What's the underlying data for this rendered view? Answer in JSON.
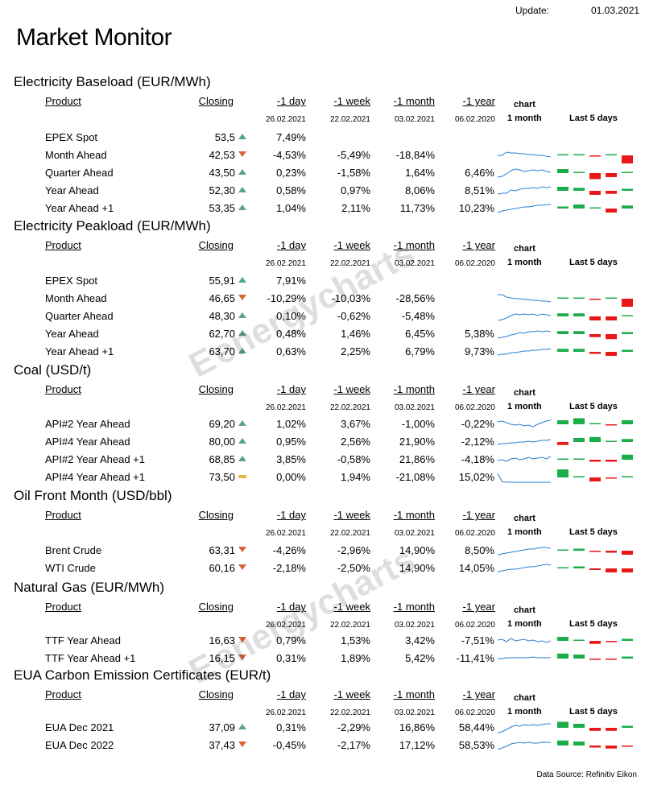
{
  "header": {
    "update_label": "Update:",
    "update_date": "01.03.2021",
    "title": "Market Monitor"
  },
  "columns": {
    "product": "Product",
    "closing": "Closing",
    "d1": "-1 day",
    "w1": "-1 week",
    "m1": "-1 month",
    "y1": "-1 year",
    "chart": "chart",
    "chart_sub": "1 month",
    "last5": "Last 5  days"
  },
  "ref_dates": {
    "d1": "26.02.2021",
    "w1": "22.02.2021",
    "m1": "03.02.2021",
    "y1": "06.02.2020"
  },
  "colors": {
    "up": "#5aa77f",
    "down": "#d8643a",
    "flat": "#e8b64a",
    "bar_green": "#1aad4a",
    "bar_red": "#e81818",
    "spark": "#2a7fd0"
  },
  "sections": [
    {
      "title": "Electricity Baseload (EUR/MWh)",
      "rows": [
        {
          "product": "EPEX Spot",
          "closing": "53,5",
          "dir": "up",
          "d1": "7,49%",
          "w1": "",
          "m1": "",
          "y1": "",
          "spark": [],
          "bars": []
        },
        {
          "product": "Month Ahead",
          "closing": "42,53",
          "dir": "down",
          "d1": "-4,53%",
          "w1": "-5,49%",
          "m1": "-18,84%",
          "y1": "",
          "spark": [
            9,
            9,
            5,
            6,
            6,
            7,
            7,
            8,
            8,
            9,
            9,
            10,
            11
          ],
          "bars": [
            0.5,
            0.5,
            -0.5,
            0,
            -4
          ]
        },
        {
          "product": "Quarter Ahead",
          "closing": "43,50",
          "dir": "up",
          "d1": "0,23%",
          "w1": "-1,58%",
          "m1": "1,64%",
          "y1": "6,46%",
          "spark": [
            14,
            13,
            10,
            6,
            4,
            5,
            7,
            6,
            5,
            6,
            5,
            7,
            8
          ],
          "bars": [
            2,
            0.5,
            -3,
            -2,
            0.5
          ]
        },
        {
          "product": "Year Ahead",
          "closing": "52,30",
          "dir": "up",
          "d1": "0,58%",
          "w1": "0,97%",
          "m1": "8,06%",
          "y1": "8,51%",
          "spark": [
            13,
            12,
            12,
            8,
            9,
            7,
            6,
            6,
            5,
            6,
            4,
            5,
            4
          ],
          "bars": [
            2,
            1.5,
            -2,
            -1.5,
            1
          ]
        },
        {
          "product": "Year  Ahead +1",
          "closing": "53,35",
          "dir": "up",
          "d1": "1,04%",
          "w1": "2,11%",
          "m1": "11,73%",
          "y1": "10,23%",
          "spark": [
            14,
            12,
            11,
            10,
            9,
            8,
            7,
            7,
            6,
            5,
            5,
            4,
            4
          ],
          "bars": [
            1,
            2,
            0,
            -2,
            1.5
          ]
        }
      ]
    },
    {
      "title": "Electricity Peakload (EUR/MWh)",
      "rows": [
        {
          "product": "EPEX Spot",
          "closing": "55,91",
          "dir": "up",
          "d1": "7,91%",
          "w1": "",
          "m1": "",
          "y1": "",
          "spark": [],
          "bars": []
        },
        {
          "product": "Month Ahead",
          "closing": "46,65",
          "dir": "down",
          "d1": "-10,29%",
          "w1": "-10,03%",
          "m1": "-28,56%",
          "y1": "",
          "spark": [
            4,
            4,
            7,
            8,
            9,
            9,
            10,
            10,
            11,
            11,
            12,
            12,
            13
          ],
          "bars": [
            0.3,
            0.3,
            -0.3,
            0.3,
            -4
          ]
        },
        {
          "product": "Quarter Ahead",
          "closing": "48,30",
          "dir": "up",
          "d1": "0,10%",
          "w1": "-0,62%",
          "m1": "-5,48%",
          "y1": "",
          "spark": [
            14,
            13,
            11,
            8,
            6,
            7,
            6,
            7,
            6,
            8,
            6,
            7,
            8
          ],
          "bars": [
            1.5,
            1.5,
            -2,
            -2,
            0.5
          ]
        },
        {
          "product": "Year Ahead",
          "closing": "62,70",
          "dir": "up",
          "d1": "0,48%",
          "w1": "1,46%",
          "m1": "6,45%",
          "y1": "5,38%",
          "spark": [
            14,
            13,
            12,
            10,
            9,
            7,
            8,
            6,
            6,
            5,
            6,
            5,
            6
          ],
          "bars": [
            1.5,
            1.5,
            -1.5,
            -2.5,
            1
          ]
        },
        {
          "product": "Year  Ahead +1",
          "closing": "63,70",
          "dir": "up",
          "d1": "0,63%",
          "w1": "2,25%",
          "m1": "6,79%",
          "y1": "9,73%",
          "spark": [
            13,
            12,
            12,
            10,
            10,
            9,
            8,
            8,
            7,
            7,
            6,
            6,
            5
          ],
          "bars": [
            1.5,
            1.5,
            -1,
            -2,
            1
          ]
        }
      ]
    },
    {
      "title": "Coal (USD/t)",
      "rows": [
        {
          "product": "API#2 Year Ahead",
          "closing": "69,20",
          "dir": "up",
          "d1": "1,02%",
          "w1": "3,67%",
          "m1": "-1,00%",
          "y1": "-0,22%",
          "spark": [
            6,
            5,
            7,
            9,
            10,
            9,
            11,
            10,
            12,
            9,
            7,
            5,
            4
          ],
          "bars": [
            2,
            3,
            0.5,
            -0.5,
            2
          ]
        },
        {
          "product": "API#4 Year Ahead",
          "closing": "80,00",
          "dir": "up",
          "d1": "0,95%",
          "w1": "2,56%",
          "m1": "21,90%",
          "y1": "-2,12%",
          "spark": [
            12,
            11,
            11,
            10,
            10,
            9,
            9,
            8,
            9,
            8,
            7,
            7,
            6
          ],
          "bars": [
            -1.5,
            2,
            2.5,
            0.5,
            1.5
          ]
        },
        {
          "product": "API#2 Year Ahead +1",
          "closing": "68,85",
          "dir": "up",
          "d1": "3,85%",
          "w1": "-0,58%",
          "m1": "21,86%",
          "y1": "-4,18%",
          "spark": [
            10,
            9,
            11,
            8,
            7,
            9,
            8,
            6,
            8,
            7,
            6,
            8,
            5
          ],
          "bars": [
            0.5,
            0,
            -1,
            -1,
            2.5
          ]
        },
        {
          "product": "API#4 Year Ahead +1",
          "closing": "73,50",
          "dir": "flat",
          "d1": "0,00%",
          "w1": "1,94%",
          "m1": "-21,08%",
          "y1": "15,02%",
          "spark": [
            4,
            14,
            15,
            15,
            15,
            15,
            15,
            15,
            15,
            15,
            15,
            15,
            15
          ],
          "bars": [
            4,
            0,
            -2,
            -0.5,
            0
          ]
        }
      ]
    },
    {
      "title": "Oil Front Month (USD/bbl)",
      "rows": [
        {
          "product": "Brent Crude",
          "closing": "63,31",
          "dir": "down",
          "d1": "-4,26%",
          "w1": "-2,96%",
          "m1": "14,90%",
          "y1": "8,50%",
          "spark": [
            14,
            13,
            12,
            11,
            10,
            9,
            8,
            7,
            7,
            6,
            5,
            5,
            6
          ],
          "bars": [
            0.5,
            1,
            -0.5,
            -1,
            -2
          ]
        },
        {
          "product": "WTI Crude",
          "closing": "60,16",
          "dir": "down",
          "d1": "-2,18%",
          "w1": "-2,50%",
          "m1": "14,90%",
          "y1": "14,05%",
          "spark": [
            13,
            12,
            11,
            10,
            10,
            9,
            8,
            7,
            7,
            6,
            5,
            4,
            5
          ],
          "bars": [
            0.3,
            1,
            -0.8,
            -2,
            -2
          ]
        }
      ]
    },
    {
      "title": "Natural Gas (EUR/MWh)",
      "rows": [
        {
          "product": "TTF Year Ahead",
          "closing": "16,63",
          "dir": "down",
          "d1": "0,79%",
          "w1": "1,53%",
          "m1": "3,42%",
          "y1": "-7,51%",
          "spark": [
            8,
            7,
            10,
            6,
            9,
            8,
            7,
            9,
            8,
            10,
            9,
            11,
            9
          ],
          "bars": [
            2,
            0.5,
            -1.5,
            -0.5,
            1
          ]
        },
        {
          "product": "TTF Year Ahead +1",
          "closing": "16,15",
          "dir": "down",
          "d1": "0,31%",
          "w1": "1,89%",
          "m1": "5,42%",
          "y1": "-11,41%",
          "spark": [
            9,
            9,
            8,
            8,
            8,
            8,
            8,
            8,
            7,
            8,
            8,
            8,
            8
          ],
          "bars": [
            2.5,
            2,
            -0.5,
            -0.5,
            1
          ]
        }
      ]
    },
    {
      "title": "EUA Carbon Emission Certificates (EUR/t)",
      "rows": [
        {
          "product": "EUA Dec 2021",
          "closing": "37,09",
          "dir": "up",
          "d1": "0,31%",
          "w1": "-2,29%",
          "m1": "16,86%",
          "y1": "58,44%",
          "spark": [
            15,
            14,
            11,
            8,
            6,
            7,
            5,
            6,
            5,
            6,
            5,
            4,
            4
          ],
          "bars": [
            3,
            2,
            -1.5,
            -1.5,
            1
          ]
        },
        {
          "product": "EUA Dec 2022",
          "closing": "37,43",
          "dir": "down",
          "d1": "-0,45%",
          "w1": "-2,17%",
          "m1": "17,12%",
          "y1": "58,53%",
          "spark": [
            14,
            12,
            10,
            7,
            6,
            5,
            6,
            5,
            6,
            6,
            5,
            5,
            5
          ],
          "bars": [
            2.5,
            2,
            -1,
            -1.5,
            -0.5
          ]
        }
      ]
    }
  ],
  "watermark": "energycharts",
  "footer": {
    "data_source": "Data Source: Refinitiv Eikon"
  }
}
